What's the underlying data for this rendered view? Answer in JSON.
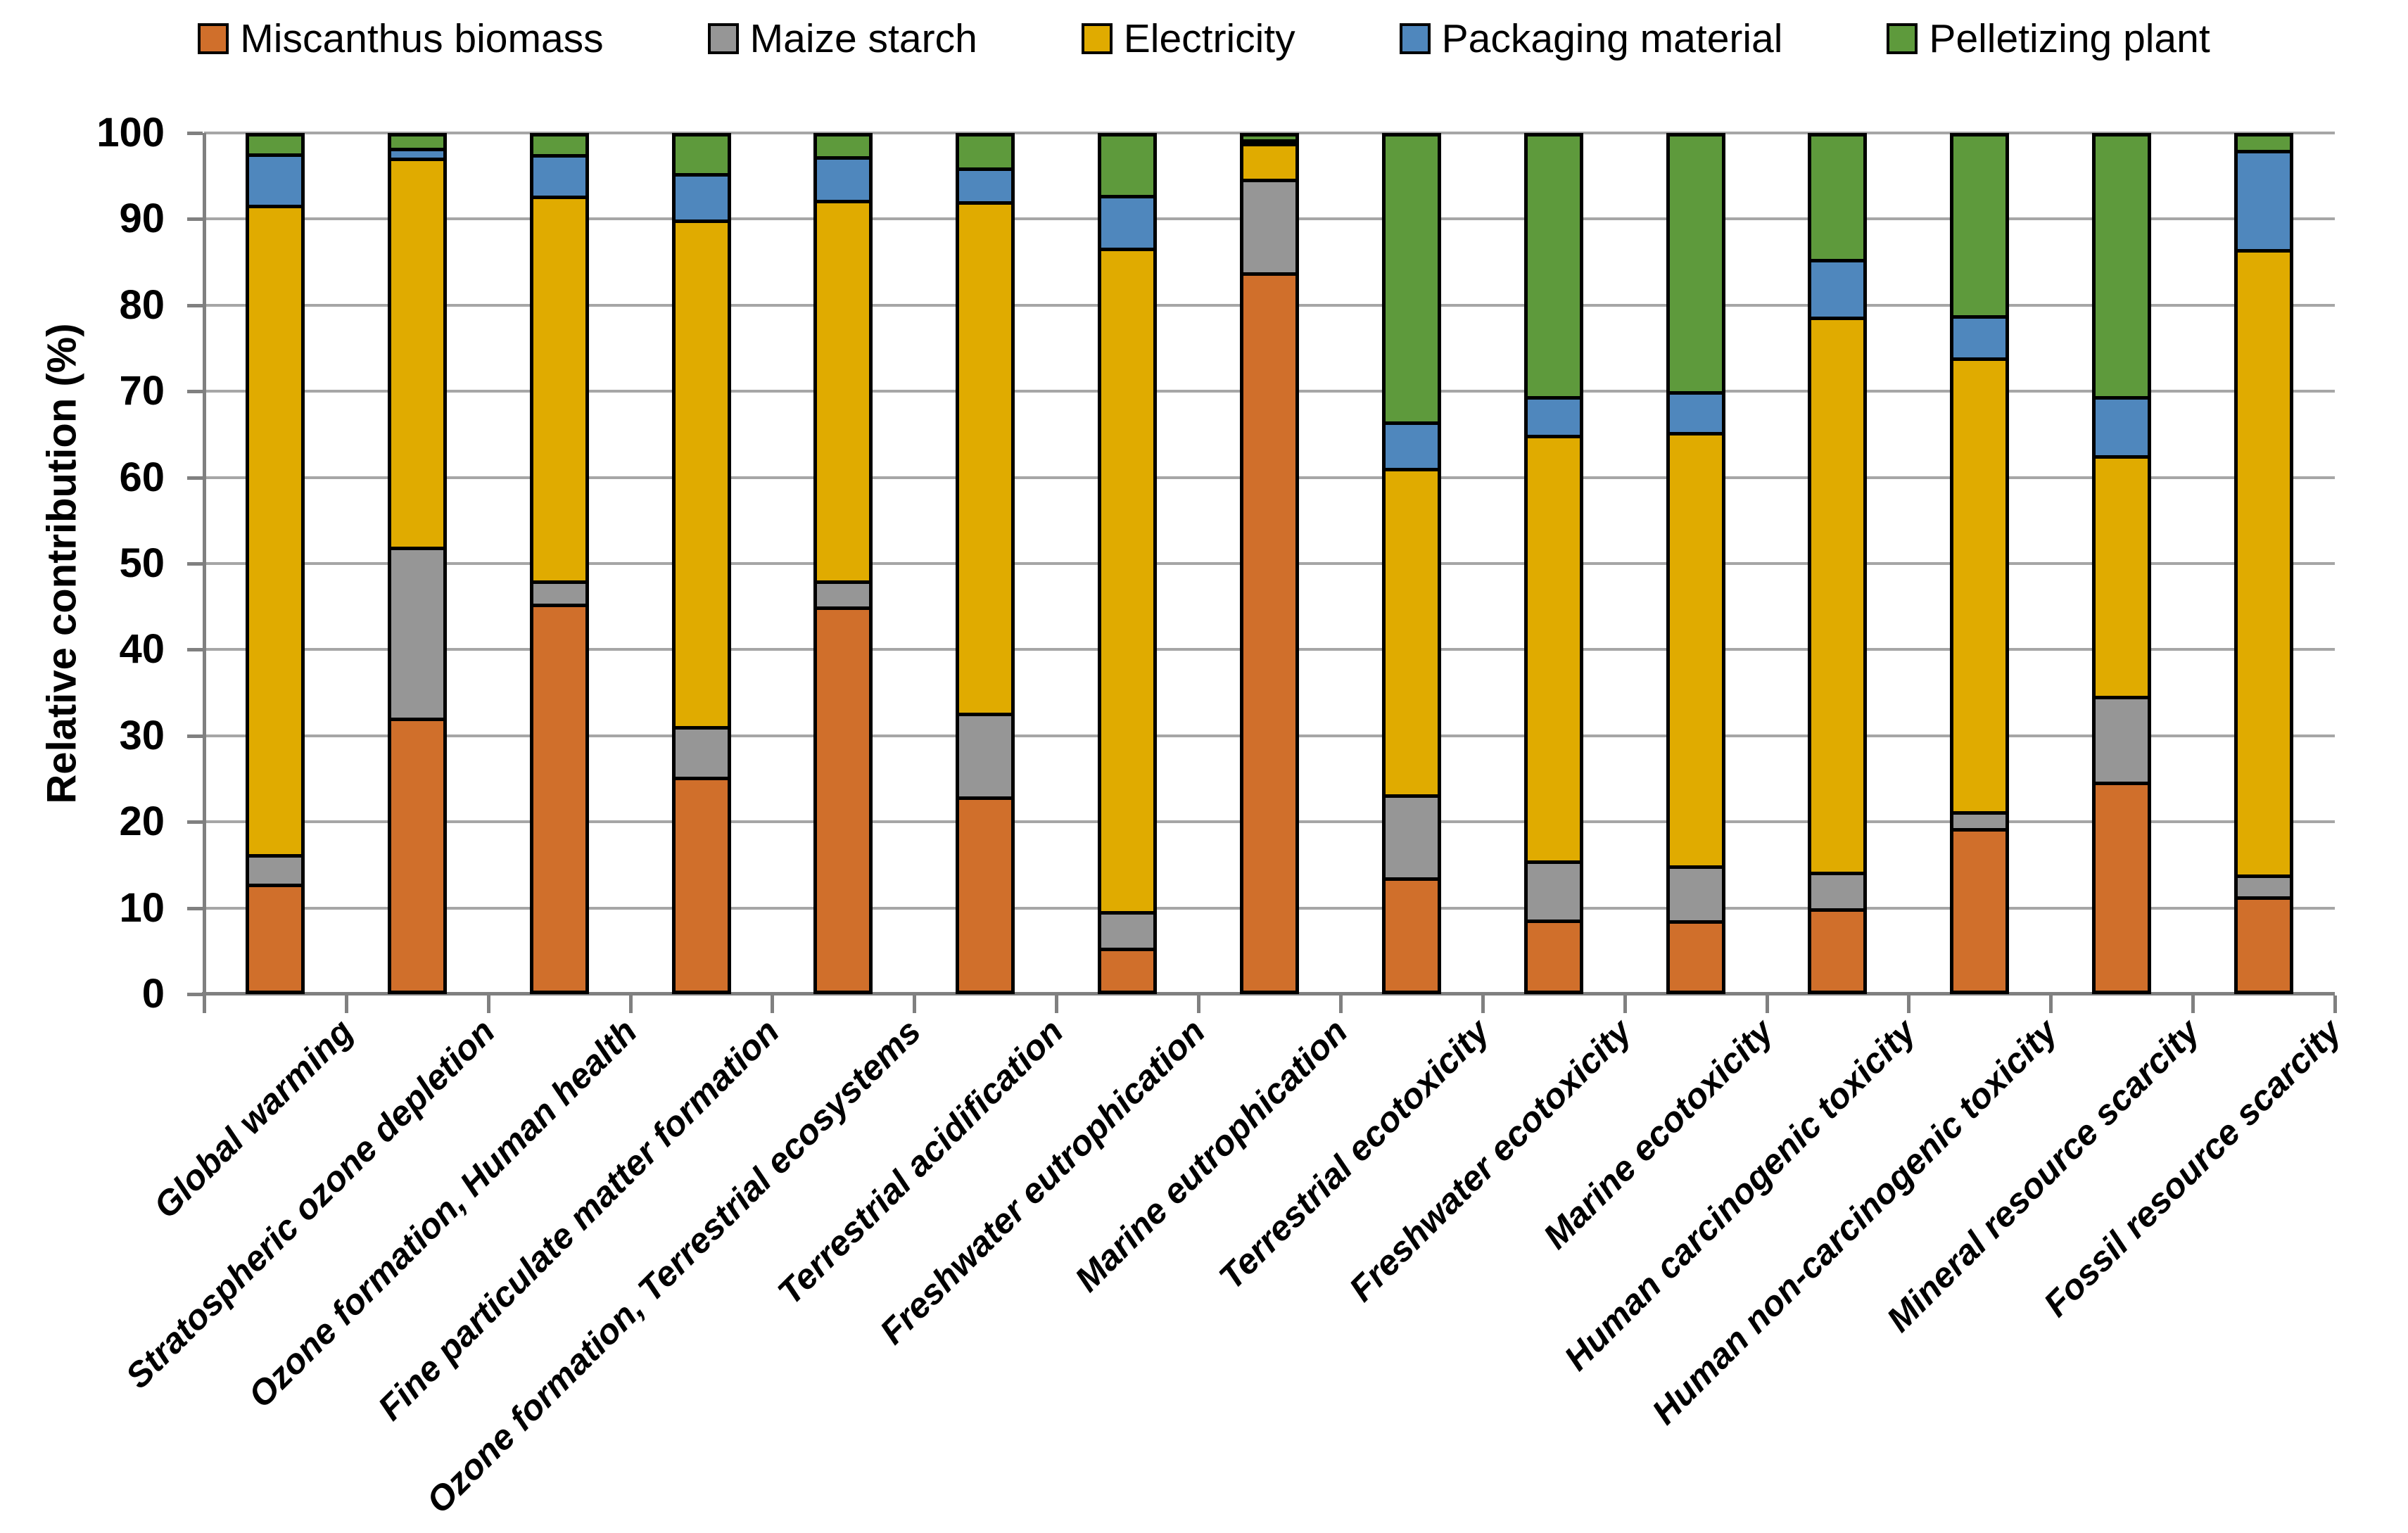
{
  "colors": {
    "grid": "#a6a6a6",
    "axis": "#808080",
    "bar_border": "#000000",
    "background": "#ffffff"
  },
  "chart_data": {
    "type": "bar",
    "stacked": true,
    "title": "",
    "xlabel": "",
    "ylabel": "Relative contribution (%)",
    "ylim": [
      0,
      100
    ],
    "yticks": [
      0,
      10,
      20,
      30,
      40,
      50,
      60,
      70,
      80,
      90,
      100
    ],
    "grid": "horizontal",
    "legend_position": "top",
    "categories": [
      "Global warming",
      "Stratospheric ozone depletion",
      "Ozone formation, Human health",
      "Fine particulate matter formation",
      "Ozone formation, Terrestrial ecosystems",
      "Terrestrial acidification",
      "Freshwater eutrophication",
      "Marine eutrophication",
      "Terrestrial ecotoxicity",
      "Freshwater ecotoxicity",
      "Marine ecotoxicity",
      "Human carcinogenic toxicity",
      "Human non-carcinogenic toxicity",
      "Mineral resource scarcity",
      "Fossil resource scarcity"
    ],
    "series": [
      {
        "name": "Miscanthus biomass",
        "color": "#D06F2B",
        "values": [
          12.5,
          32.0,
          45.3,
          25.0,
          45.0,
          22.7,
          5.0,
          84.2,
          13.3,
          8.3,
          8.2,
          9.6,
          19.0,
          24.5,
          11.0
        ]
      },
      {
        "name": "Maize starch",
        "color": "#969696",
        "values": [
          3.5,
          20.0,
          2.7,
          6.0,
          3.0,
          9.8,
          4.3,
          11.0,
          9.7,
          6.9,
          6.5,
          4.3,
          2.0,
          10.0,
          2.6
        ]
      },
      {
        "name": "Electricity",
        "color": "#E0AB00",
        "values": [
          76.0,
          45.5,
          45.1,
          59.3,
          44.6,
          59.9,
          77.7,
          4.2,
          38.2,
          49.9,
          50.7,
          65.0,
          53.1,
          28.2,
          73.2
        ]
      },
      {
        "name": "Packaging material",
        "color": "#4F87BD",
        "values": [
          6.0,
          1.2,
          4.8,
          5.4,
          5.1,
          4.0,
          6.2,
          0.3,
          5.4,
          4.5,
          4.8,
          6.8,
          5.0,
          6.9,
          11.6
        ]
      },
      {
        "name": "Pelletizing plant",
        "color": "#5E9A3C",
        "values": [
          2.0,
          1.3,
          2.1,
          4.3,
          2.3,
          3.6,
          6.8,
          0.3,
          33.4,
          30.4,
          29.8,
          14.3,
          20.9,
          30.4,
          1.6
        ]
      }
    ]
  }
}
